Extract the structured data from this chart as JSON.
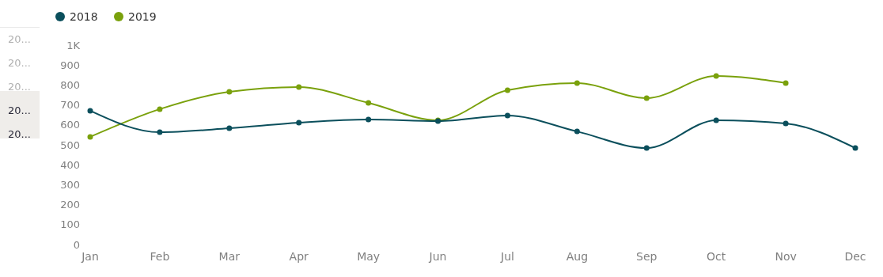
{
  "chart_data": {
    "type": "line",
    "categories": [
      "Jan",
      "Feb",
      "Mar",
      "Apr",
      "May",
      "Jun",
      "Jul",
      "Aug",
      "Sep",
      "Oct",
      "Nov",
      "Dec"
    ],
    "series": [
      {
        "name": "2018",
        "color": "#0b4f5c",
        "values": [
          671,
          563,
          583,
          611,
          627,
          619,
          647,
          567,
          484,
          623,
          607,
          484
        ]
      },
      {
        "name": "2019",
        "color": "#7aa10c",
        "values": [
          540,
          679,
          766,
          790,
          710,
          623,
          774,
          810,
          734,
          845,
          810,
          null
        ]
      }
    ],
    "ylim": [
      0,
      1000
    ],
    "yticks": [
      0,
      100,
      200,
      300,
      400,
      500,
      600,
      700,
      800,
      900,
      {
        "value": 1000,
        "label": "1K"
      }
    ],
    "grid": false,
    "legend": "top left",
    "marker": "circle",
    "line_style": "solid",
    "annotations": [
      "20...",
      "20...",
      "20...",
      "20...",
      "20..."
    ]
  }
}
